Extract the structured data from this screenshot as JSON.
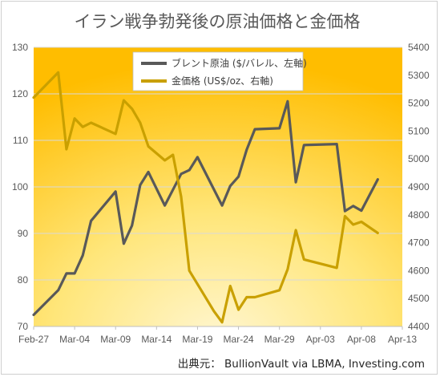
{
  "chart_data": {
    "type": "line",
    "title": "イラン戦争勃発後の原油価格と金価格",
    "source": "出典元： BullionVault via LBMA, Investing.com",
    "x_tick_labels": [
      "Feb-27",
      "Mar-04",
      "Mar-09",
      "Mar-14",
      "Mar-19",
      "Mar-24",
      "Mar-29",
      "Apr-03",
      "Apr-08",
      "Apr-13"
    ],
    "x_range_days": [
      0,
      45
    ],
    "y_left": {
      "min": 70,
      "max": 130,
      "ticks": [
        70,
        80,
        90,
        100,
        110,
        120,
        130
      ]
    },
    "y_right": {
      "min": 4400,
      "max": 5400,
      "ticks": [
        4400,
        4500,
        4600,
        4700,
        4800,
        4900,
        5000,
        5100,
        5200,
        5300,
        5400
      ]
    },
    "legend_position": "top-center",
    "grid": "horizontal",
    "series": [
      {
        "name": "ブレント原油 ($/バレル、左軸)",
        "axis": "left",
        "color": "#595959",
        "x": [
          0,
          3,
          4,
          5,
          6,
          7,
          10,
          11,
          12,
          13,
          14,
          16,
          18,
          19,
          20,
          23,
          24,
          25,
          26,
          27,
          30,
          31,
          32,
          33,
          37,
          38,
          39,
          40,
          42
        ],
        "y": [
          72.5,
          77.8,
          81.4,
          81.4,
          85.3,
          92.7,
          99.0,
          87.8,
          91.7,
          100.4,
          103.2,
          96.0,
          102.8,
          103.6,
          106.4,
          96.0,
          100.2,
          102.2,
          108.0,
          112.4,
          112.6,
          118.4,
          101.0,
          109.0,
          109.2,
          94.8,
          95.9,
          94.9,
          101.6
        ]
      },
      {
        "name": "金価格 (US$/oz、右軸)",
        "axis": "right",
        "color": "#c9a000",
        "x": [
          0,
          3,
          4,
          5,
          6,
          7,
          10,
          11,
          12,
          13,
          14,
          16,
          17,
          18,
          19,
          22,
          23,
          24,
          25,
          26,
          27,
          30,
          31,
          32,
          33,
          37,
          38,
          39,
          40,
          42
        ],
        "y": [
          5220,
          5310,
          5035,
          5145,
          5115,
          5130,
          5090,
          5210,
          5180,
          5130,
          5045,
          4995,
          5015,
          4865,
          4600,
          4455,
          4415,
          4545,
          4460,
          4505,
          4505,
          4530,
          4605,
          4745,
          4640,
          4610,
          4795,
          4765,
          4775,
          4735
        ]
      }
    ]
  }
}
